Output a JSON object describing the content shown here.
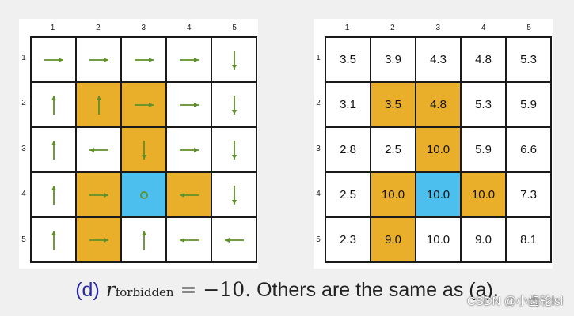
{
  "columns": [
    "1",
    "2",
    "3",
    "4",
    "5"
  ],
  "rows": [
    "1",
    "2",
    "3",
    "4",
    "5"
  ],
  "colors": {
    "forbidden": "#e9ae2a",
    "target": "#4dbfee",
    "arrow": "#5f8f2a"
  },
  "cell_types": [
    [
      "n",
      "n",
      "n",
      "n",
      "n"
    ],
    [
      "n",
      "f",
      "f",
      "n",
      "n"
    ],
    [
      "n",
      "n",
      "f",
      "n",
      "n"
    ],
    [
      "n",
      "f",
      "t",
      "f",
      "n"
    ],
    [
      "n",
      "f",
      "n",
      "n",
      "n"
    ]
  ],
  "policy": [
    [
      "right",
      "right",
      "right",
      "right",
      "down"
    ],
    [
      "up",
      "up",
      "right",
      "right",
      "down"
    ],
    [
      "up",
      "left",
      "down",
      "right",
      "down"
    ],
    [
      "up",
      "right",
      "stay",
      "left",
      "down"
    ],
    [
      "up",
      "right",
      "up",
      "left",
      "left"
    ]
  ],
  "state_values": [
    [
      "3.5",
      "3.9",
      "4.3",
      "4.8",
      "5.3"
    ],
    [
      "3.1",
      "3.5",
      "4.8",
      "5.3",
      "5.9"
    ],
    [
      "2.8",
      "2.5",
      "10.0",
      "5.9",
      "6.6"
    ],
    [
      "2.5",
      "10.0",
      "10.0",
      "10.0",
      "7.3"
    ],
    [
      "2.3",
      "9.0",
      "10.0",
      "9.0",
      "8.1"
    ]
  ],
  "caption": {
    "label": "(d)",
    "math_r": "r",
    "math_sub": "forbidden",
    "math_eq": " = −10.",
    "text": " Others are the same as (a)."
  },
  "watermark": "CSDN @小齿轮lsl"
}
